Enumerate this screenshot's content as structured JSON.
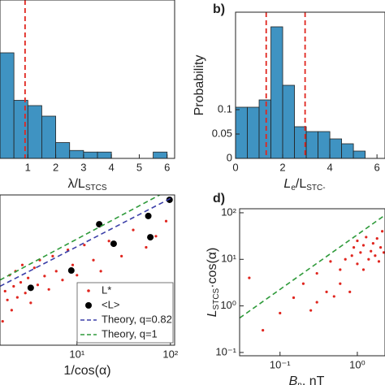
{
  "chart_data": [
    {
      "type": "histogram",
      "xlabel": [
        {
          "text": "λ/L"
        },
        {
          "text": "STCS",
          "sub": true
        }
      ],
      "bins": [
        0,
        0.5,
        1,
        1.5,
        2,
        2.5,
        3,
        3.5,
        4,
        4.5,
        5,
        5.5,
        6
      ],
      "values": [
        0.2,
        0.11,
        0.1,
        0.08,
        0.03,
        0.015,
        0.012,
        0.012,
        0,
        0,
        0,
        0.012
      ],
      "color": "#3f93c2",
      "vlines": [
        0.9
      ],
      "vline_color": "#e0261f",
      "xlim": [
        0,
        6.27
      ],
      "ylim": [
        0,
        0.3
      ],
      "xticks": [
        1,
        2,
        3,
        4,
        5,
        6
      ]
    },
    {
      "type": "histogram",
      "title": "b)",
      "ylabel": "Probability",
      "xlabel": [
        {
          "text": "L"
        },
        {
          "text": "e",
          "sub": true
        },
        {
          "text": "/L"
        },
        {
          "text": "STC-",
          "sub": true
        }
      ],
      "bins": [
        0,
        0.5,
        1,
        1.5,
        2,
        2.5,
        3,
        3.5,
        4,
        4.5,
        5,
        5.5
      ],
      "values": [
        0.105,
        0.105,
        0.12,
        0.27,
        0.15,
        0.065,
        0.055,
        0.055,
        0.04,
        0.03,
        0.015
      ],
      "color": "#3f93c2",
      "vlines": [
        1.3,
        2.95
      ],
      "vline_color": "#e0261f",
      "xlim": [
        0,
        6.34
      ],
      "ylim": [
        0,
        0.3
      ],
      "xticks": [
        0,
        2,
        4,
        6
      ],
      "yticks": [
        0,
        0.05,
        0.1
      ]
    },
    {
      "type": "scatter",
      "xlog": true,
      "ylog": true,
      "xlabel": [
        {
          "text": "1/cos(α)"
        }
      ],
      "xlim": [
        1.5,
        111
      ],
      "ylim": [
        0.1,
        100
      ],
      "xticks": [
        {
          "value": 10,
          "label": "10¹"
        },
        {
          "value": 100,
          "label": "10²"
        }
      ],
      "series": [
        {
          "name": "L*",
          "kind": "points",
          "color": "#e0261f",
          "x": [
            1.6,
            1.7,
            1.8,
            1.9,
            2.0,
            2.1,
            2.2,
            2.3,
            2.5,
            2.6,
            2.8,
            3.0,
            3.2,
            3.5,
            3.8,
            4.0,
            4.5,
            5,
            5.5,
            6,
            7,
            8,
            9,
            10,
            12,
            15,
            18,
            22,
            30,
            40,
            55,
            70,
            90
          ],
          "values": [
            0.3,
            1.2,
            0.8,
            2.5,
            0.5,
            1.5,
            3.0,
            0.9,
            1.8,
            4.0,
            1.1,
            2.2,
            0.7,
            3.5,
            1.6,
            5,
            2.4,
            1.3,
            6,
            3,
            2,
            8,
            4,
            2.5,
            10,
            5,
            3,
            12,
            6,
            20,
            9,
            15,
            30
          ]
        },
        {
          "name": "<L>",
          "kind": "big-points",
          "color": "#000000",
          "x": [
            3.2,
            8.7,
            17.3,
            24.7,
            58,
            61,
            98
          ],
          "values": [
            1.4,
            3.1,
            26,
            10.6,
            38,
            14.3,
            80
          ]
        },
        {
          "name": "Theory, q=0.82",
          "kind": "dashed",
          "color": "#3b3fa8",
          "x": [
            1.5,
            100
          ],
          "values": [
            1.5,
            85
          ]
        },
        {
          "name": "Theory, q=1",
          "kind": "dashed",
          "color": "#2e9a3a",
          "x": [
            1.5,
            100
          ],
          "values": [
            2,
            130
          ]
        }
      ]
    },
    {
      "type": "scatter",
      "title": "d)",
      "xlog": true,
      "ylog": true,
      "xlabel": [
        {
          "text": "B"
        },
        {
          "text": "n",
          "sub": true
        },
        {
          "text": ", nT"
        }
      ],
      "ylabel": [
        {
          "text": "L"
        },
        {
          "text": "STCS",
          "sub": true
        },
        {
          "text": "·cos(α)"
        }
      ],
      "xlim": [
        0.03,
        2.28
      ],
      "ylim": [
        0.085,
        122
      ],
      "xticks": [
        {
          "value": 0.1,
          "label": "10⁻¹"
        },
        {
          "value": 1,
          "label": "10⁰"
        }
      ],
      "yticks": [
        {
          "value": 0.1,
          "label": "10⁻¹"
        },
        {
          "value": 1,
          "label": "10⁰"
        },
        {
          "value": 10,
          "label": "10¹"
        },
        {
          "value": 100,
          "label": "10²"
        }
      ],
      "series": [
        {
          "kind": "points",
          "color": "#e0261f",
          "x": [
            0.04,
            0.06,
            0.1,
            0.15,
            0.2,
            0.25,
            0.3,
            0.3,
            0.4,
            0.45,
            0.5,
            0.6,
            0.6,
            0.7,
            0.8,
            0.85,
            0.9,
            1.0,
            1.0,
            1.1,
            1.2,
            1.2,
            1.3,
            1.4,
            1.5,
            1.6,
            1.7,
            1.8,
            1.9,
            2.0,
            2.1,
            2.2
          ],
          "values": [
            4,
            0.3,
            0.7,
            1.5,
            3,
            0.8,
            5,
            1.2,
            2,
            9,
            1.6,
            3,
            6,
            10,
            2,
            12,
            18,
            8,
            25,
            14,
            6,
            20,
            30,
            10,
            15,
            22,
            12,
            28,
            9,
            18,
            40,
            14
          ]
        },
        {
          "kind": "dashed",
          "color": "#2e9a3a",
          "x": [
            0.03,
            2.28
          ],
          "values": [
            0.55,
            89
          ]
        }
      ]
    }
  ]
}
